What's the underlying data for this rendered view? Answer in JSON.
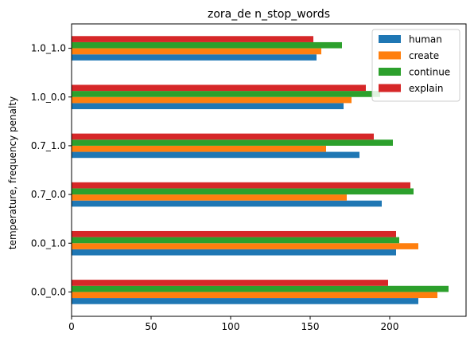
{
  "chart_data": {
    "type": "bar",
    "orientation": "horizontal",
    "title": "zora_de n_stop_words",
    "ylabel": "temperature, frequency penalty",
    "xlabel": "",
    "categories": [
      "0.0_0.0",
      "0.0_1.0",
      "0.7_0.0",
      "0.7_1.0",
      "1.0_0.0",
      "1.0_1.0"
    ],
    "xlim": [
      0,
      248
    ],
    "xticks": [
      0,
      50,
      100,
      150,
      200
    ],
    "legend_position": "top-right",
    "grid": false,
    "series": [
      {
        "name": "human",
        "color": "#1f77b4",
        "values": [
          218,
          204,
          195,
          181,
          171,
          154
        ]
      },
      {
        "name": "create",
        "color": "#ff7f0e",
        "values": [
          230,
          218,
          173,
          160,
          176,
          157
        ]
      },
      {
        "name": "continue",
        "color": "#2ca02c",
        "values": [
          237,
          206,
          215,
          202,
          194,
          170
        ]
      },
      {
        "name": "explain",
        "color": "#d62728",
        "values": [
          199,
          204,
          213,
          190,
          185,
          152
        ]
      }
    ]
  }
}
